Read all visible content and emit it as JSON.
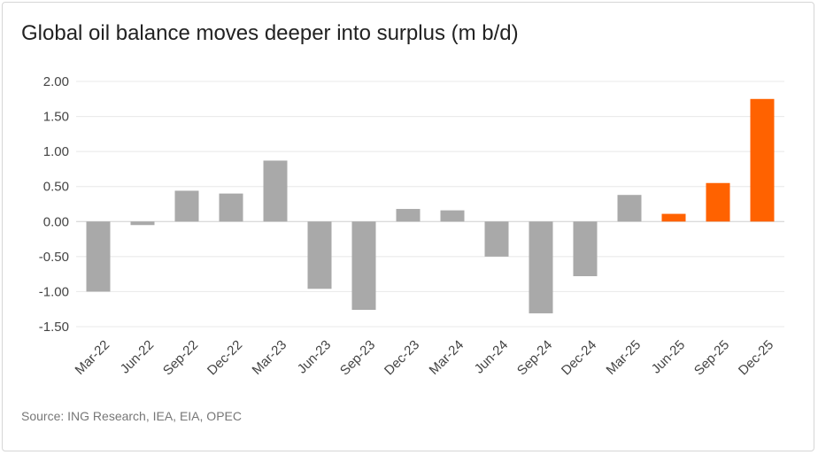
{
  "chart_data": {
    "type": "bar",
    "title": "Global oil balance moves deeper into surplus (m b/d)",
    "source": "Source: ING Research, IEA, EIA, OPEC",
    "categories": [
      "Mar-22",
      "Jun-22",
      "Sep-22",
      "Dec-22",
      "Mar-23",
      "Jun-23",
      "Sep-23",
      "Dec-23",
      "Mar-24",
      "Jun-24",
      "Sep-24",
      "Dec-24",
      "Mar-25",
      "Jun-25",
      "Sep-25",
      "Dec-25"
    ],
    "values": [
      -1.0,
      -0.05,
      0.44,
      0.4,
      0.87,
      -0.96,
      -1.26,
      0.18,
      0.16,
      -0.5,
      -1.31,
      -0.78,
      0.38,
      0.11,
      0.55,
      1.75
    ],
    "highlight_from_index": 13,
    "colors": {
      "actual": "#a9a9a9",
      "forecast": "#ff6200"
    },
    "ylim": [
      -1.5,
      2.0
    ],
    "yticks": [
      2.0,
      1.5,
      1.0,
      0.5,
      0.0,
      -0.5,
      -1.0,
      -1.5
    ],
    "ytick_labels": [
      "2.00",
      "1.50",
      "1.00",
      "0.50",
      "0.00",
      "-0.50",
      "-1.00",
      "-1.50"
    ],
    "grid": true,
    "legend": "none"
  }
}
